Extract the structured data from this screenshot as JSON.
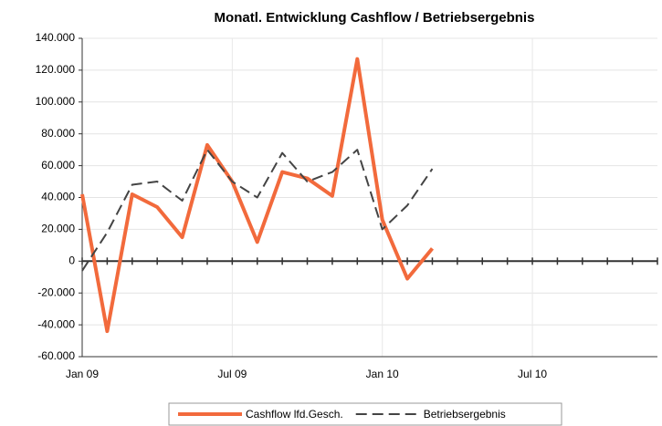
{
  "chart_data": {
    "type": "line",
    "title": "Monatl. Entwicklung Cashflow / Betriebsergebnis",
    "categories": [
      "Jan 09",
      null,
      null,
      null,
      null,
      null,
      "Jul 09",
      null,
      null,
      null,
      null,
      null,
      "Jan 10",
      null,
      null,
      null,
      null,
      null,
      "Jul 10",
      null,
      null,
      null,
      null,
      null
    ],
    "series": [
      {
        "name": "Cashflow lfd.Gesch.",
        "color": "#f26a3c",
        "dash": false,
        "values": [
          42000,
          -44000,
          42000,
          34000,
          15000,
          73000,
          50000,
          12000,
          56000,
          52000,
          41000,
          127000,
          26000,
          -11000,
          8000,
          null,
          null,
          null,
          null,
          null,
          null,
          null,
          null,
          null
        ]
      },
      {
        "name": "Betriebsergebnis",
        "color": "#444444",
        "dash": true,
        "values": [
          -6000,
          18000,
          48000,
          50000,
          38000,
          70000,
          50000,
          40000,
          68000,
          50000,
          56000,
          70000,
          20000,
          35000,
          58000,
          null,
          null,
          null,
          null,
          null,
          null,
          null,
          null,
          null
        ]
      }
    ],
    "ylim": [
      -60000,
      140000
    ],
    "yticks": [
      {
        "value": -60000,
        "label": "-60.000"
      },
      {
        "value": -40000,
        "label": "-40.000"
      },
      {
        "value": -20000,
        "label": "-20.000"
      },
      0,
      {
        "value": 20000,
        "label": "20.000"
      },
      {
        "value": 40000,
        "label": "40.000"
      },
      {
        "value": 60000,
        "label": "60.000"
      },
      {
        "value": 80000,
        "label": "80.000"
      },
      {
        "value": 100000,
        "label": "100.000"
      },
      {
        "value": 120000,
        "label": "120.000"
      },
      {
        "value": 140000,
        "label": "140.000"
      }
    ],
    "grid": true,
    "legend": "bottom"
  }
}
